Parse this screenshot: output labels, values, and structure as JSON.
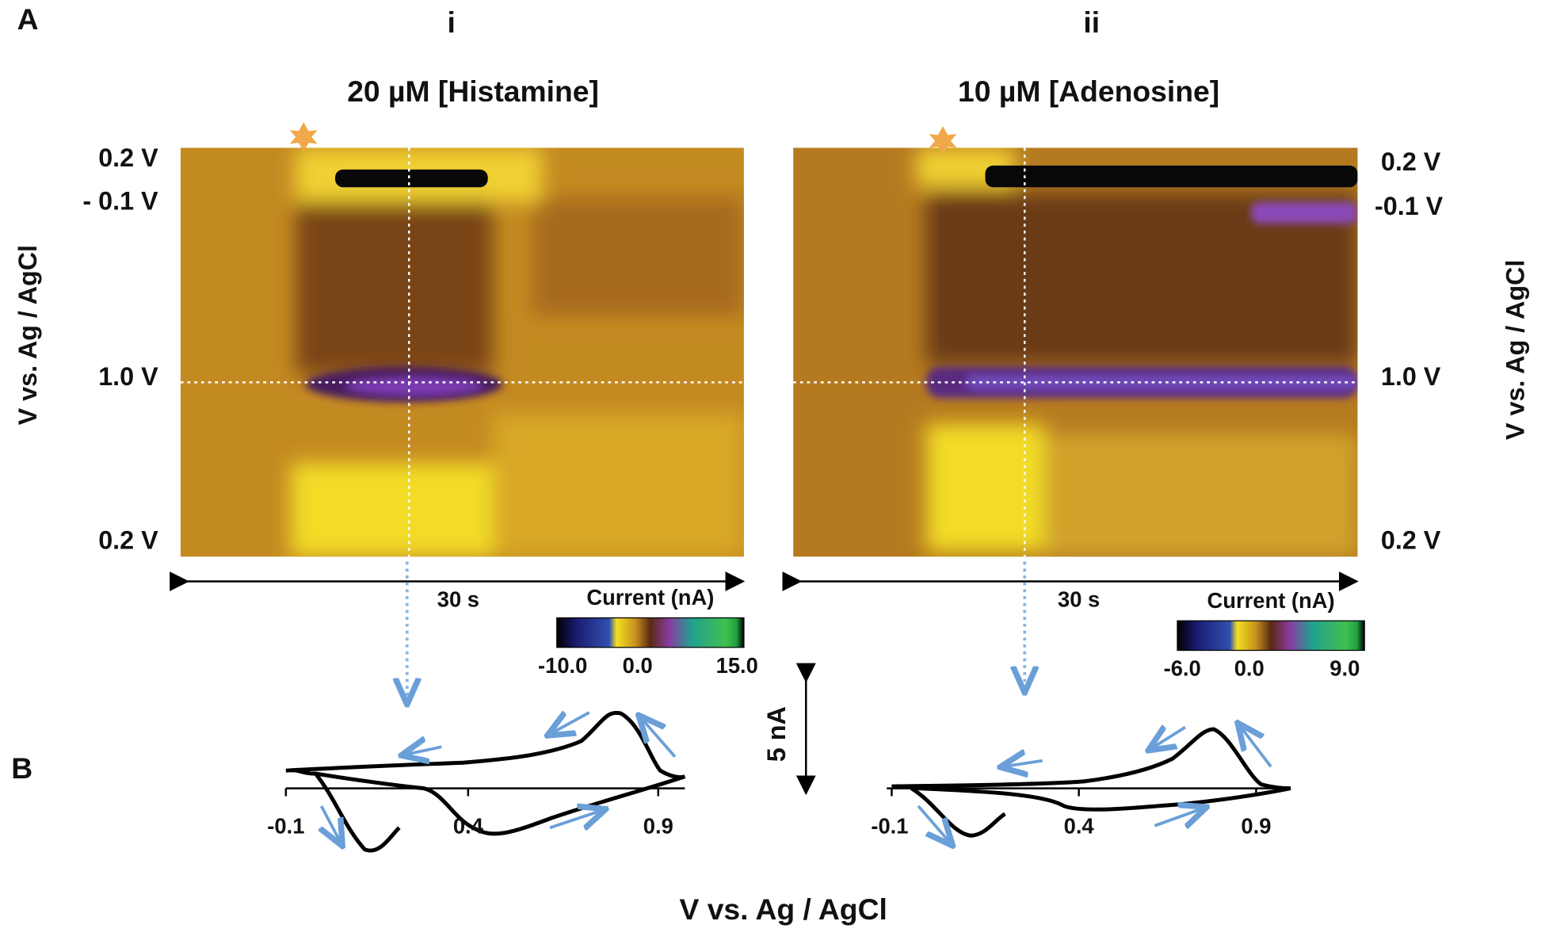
{
  "panel_labels": [
    "A",
    "B"
  ],
  "panels": [
    {
      "numeral": "i",
      "title": "20 µM [Histamine]",
      "potential_labels": [
        "0.2 V",
        "- 0.1 V",
        "1.0 V",
        "0.2 V"
      ],
      "time_label": "30 s",
      "colorbar": {
        "title": "Current (nA)",
        "ticks": [
          "-10.0",
          "0.0",
          "15.0"
        ]
      },
      "cv_ticks": [
        "-0.1",
        "0.4",
        "0.9"
      ]
    },
    {
      "numeral": "ii",
      "title": "10 µM [Adenosine]",
      "potential_labels": [
        "0.2 V",
        "-0.1 V",
        "1.0 V",
        "0.2 V"
      ],
      "time_label": "30 s",
      "colorbar": {
        "title": "Current (nA)",
        "ticks": [
          "-6.0",
          "0.0",
          "9.0"
        ]
      },
      "cv_ticks": [
        "-0.1",
        "0.4",
        "0.9"
      ]
    }
  ],
  "y_axis_label": "V vs. Ag / AgCl",
  "cv_scale": "5 nA",
  "x_axis_label": "V vs. Ag / AgCl"
}
